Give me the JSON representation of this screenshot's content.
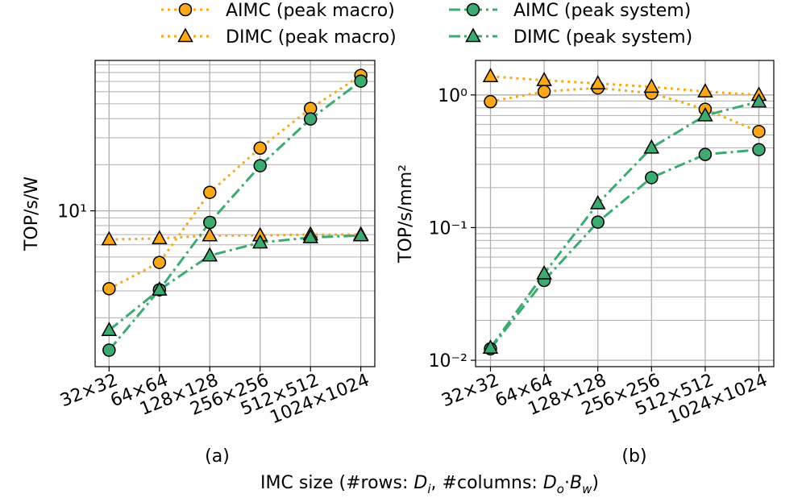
{
  "figure": {
    "xlabel": [
      "IMC size (#rows: ",
      "D",
      "i",
      ", #columns: ",
      "D",
      "o",
      "·",
      "B",
      "w",
      ")"
    ]
  },
  "chart_data": [
    {
      "type": "line",
      "label": "(a)",
      "ylabel": "TOP/s/W",
      "log_y": true,
      "grid": true,
      "categories": [
        "32×32",
        "64×64",
        "128×128",
        "256×256",
        "512×512",
        "1024×1024"
      ],
      "ylim": [
        0.96,
        96
      ],
      "yticks": [
        {
          "value": 10,
          "label": "10¹"
        }
      ],
      "yminorticks": [
        2,
        3,
        4,
        5,
        6,
        7,
        8,
        9,
        20,
        30,
        40,
        50,
        60,
        70,
        80,
        90
      ],
      "series": [
        {
          "name": "AIMC (peak macro)",
          "color": "#f9a81b",
          "marker": "circle",
          "dash": "dotted",
          "values": [
            3.1,
            4.6,
            13.2,
            25.7,
            46.6,
            76.6
          ]
        },
        {
          "name": "DIMC (peak macro)",
          "color": "#f9a81b",
          "marker": "triangle",
          "dash": "dotted",
          "values": [
            6.5,
            6.6,
            6.9,
            6.9,
            7.0,
            7.0
          ]
        },
        {
          "name": "AIMC (peak system)",
          "color": "#3daa72",
          "marker": "circle",
          "dash": "dashdot",
          "values": [
            1.23,
            3.05,
            8.4,
            19.7,
            39.8,
            70.3
          ]
        },
        {
          "name": "DIMC (peak system)",
          "color": "#3daa72",
          "marker": "triangle",
          "dash": "dashdot",
          "values": [
            1.66,
            3.05,
            5.1,
            6.2,
            6.7,
            6.9
          ]
        }
      ]
    },
    {
      "type": "line",
      "label": "(b)",
      "ylabel": "TOP/s/mm²",
      "log_y": true,
      "grid": true,
      "categories": [
        "32×32",
        "64×64",
        "128×128",
        "256×256",
        "512×512",
        "1024×1024"
      ],
      "ylim": [
        0.00895,
        1.82
      ],
      "yticks": [
        {
          "value": 0.01,
          "label": "10⁻²"
        },
        {
          "value": 0.1,
          "label": "10⁻¹"
        },
        {
          "value": 1,
          "label": "10⁰"
        }
      ],
      "yminorticks": [
        0.02,
        0.03,
        0.04,
        0.05,
        0.06,
        0.07,
        0.08,
        0.09,
        0.2,
        0.3,
        0.4,
        0.5,
        0.6,
        0.7,
        0.8,
        0.9
      ],
      "series": [
        {
          "name": "AIMC (peak macro)",
          "color": "#f9a81b",
          "marker": "circle",
          "dash": "dotted",
          "values": [
            0.89,
            1.06,
            1.13,
            1.03,
            0.78,
            0.53
          ]
        },
        {
          "name": "DIMC (peak macro)",
          "color": "#f9a81b",
          "marker": "triangle",
          "dash": "dotted",
          "values": [
            1.38,
            1.29,
            1.22,
            1.15,
            1.06,
            1.0
          ]
        },
        {
          "name": "AIMC (peak system)",
          "color": "#3daa72",
          "marker": "circle",
          "dash": "dashdot",
          "values": [
            0.0122,
            0.04,
            0.11,
            0.238,
            0.356,
            0.387
          ]
        },
        {
          "name": "DIMC (peak system)",
          "color": "#3daa72",
          "marker": "triangle",
          "dash": "dashdot",
          "values": [
            0.0124,
            0.045,
            0.152,
            0.4,
            0.7,
            0.89
          ]
        }
      ]
    }
  ]
}
